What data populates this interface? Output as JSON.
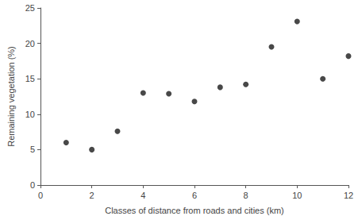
{
  "chart_data": {
    "type": "scatter",
    "x_label": "Classes of distance from roads and cities (km)",
    "y_label": "Remaining vegetation (%)",
    "x": [
      1,
      2,
      3,
      4,
      5,
      6,
      7,
      8,
      9,
      10,
      11,
      12
    ],
    "values": [
      6,
      5,
      7.6,
      13,
      12.9,
      11.8,
      13.8,
      14.2,
      19.5,
      23.1,
      15,
      18.2
    ],
    "color": "#1a1a1a",
    "marker": "circle",
    "xlim": [
      0,
      12
    ],
    "xticks": [
      0,
      2,
      4,
      6,
      8,
      10,
      12
    ],
    "ylim": [
      0,
      25
    ],
    "yticks": [
      0,
      5,
      10,
      15,
      20,
      25
    ],
    "grid": false
  }
}
